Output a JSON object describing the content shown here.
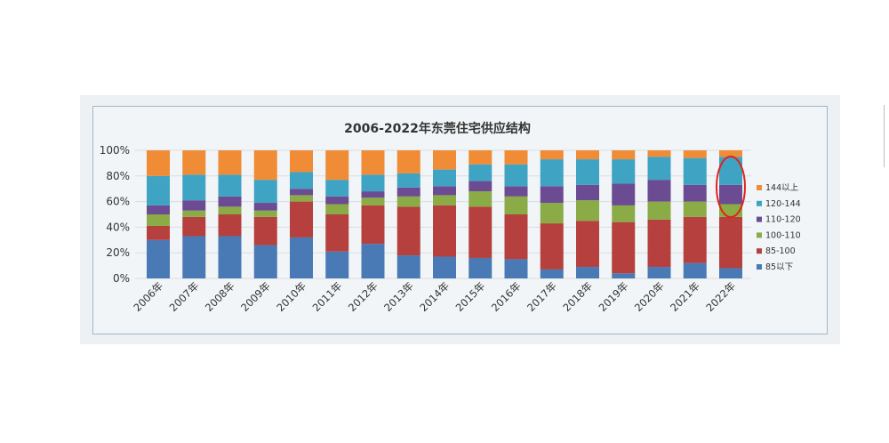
{
  "chart_data": {
    "type": "bar",
    "stacked": true,
    "title": "2006-2022年东莞住宅供应结构",
    "categories": [
      "2006年",
      "2007年",
      "2008年",
      "2009年",
      "2010年",
      "2011年",
      "2012年",
      "2013年",
      "2014年",
      "2015年",
      "2016年",
      "2017年",
      "2018年",
      "2019年",
      "2020年",
      "2021年",
      "2022年"
    ],
    "ylim": [
      0,
      100
    ],
    "yticks": [
      "0%",
      "20%",
      "40%",
      "60%",
      "80%",
      "100%"
    ],
    "legend_position": "right",
    "series": [
      {
        "name": "85以下",
        "color": "#4a7ab5",
        "values": [
          30,
          33,
          33,
          26,
          32,
          21,
          27,
          18,
          17,
          16,
          15,
          7,
          9,
          4,
          9,
          12,
          8
        ]
      },
      {
        "name": "85-100",
        "color": "#b5403d",
        "values": [
          11,
          15,
          17,
          22,
          28,
          29,
          30,
          38,
          40,
          40,
          35,
          36,
          36,
          40,
          37,
          36,
          40
        ]
      },
      {
        "name": "100-110",
        "color": "#8bab46",
        "values": [
          9,
          5,
          6,
          5,
          5,
          8,
          6,
          8,
          8,
          12,
          14,
          16,
          16,
          13,
          14,
          12,
          10
        ]
      },
      {
        "name": "110-120",
        "color": "#6b4c93",
        "values": [
          7,
          8,
          8,
          6,
          5,
          6,
          5,
          7,
          7,
          8,
          8,
          13,
          12,
          17,
          17,
          13,
          15
        ]
      },
      {
        "name": "120-144",
        "color": "#3fa3c3",
        "values": [
          23,
          20,
          17,
          18,
          13,
          13,
          13,
          11,
          13,
          13,
          17,
          21,
          20,
          19,
          18,
          21,
          22
        ]
      },
      {
        "name": "144以上",
        "color": "#ef8c35",
        "values": [
          20,
          19,
          19,
          23,
          17,
          23,
          19,
          18,
          15,
          11,
          11,
          7,
          7,
          7,
          5,
          6,
          5
        ]
      }
    ]
  }
}
